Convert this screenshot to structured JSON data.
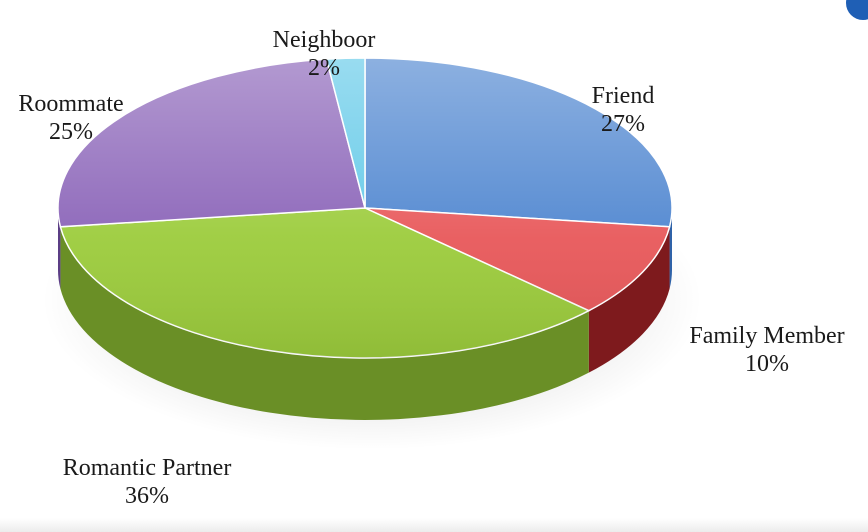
{
  "chart_data": {
    "type": "pie",
    "title": "",
    "categories": [
      "Friend",
      "Family Member",
      "Romantic Partner",
      "Roommate",
      "Neighboor"
    ],
    "values": [
      27,
      10,
      36,
      25,
      2
    ],
    "value_labels": [
      "27%",
      "10%",
      "36%",
      "25%",
      "2%"
    ],
    "colors": [
      "#4f86d0",
      "#e8585a",
      "#9ccc3c",
      "#8a63b8",
      "#62c9e8"
    ],
    "side_colors": [
      "#2f62a8",
      "#7e1a1d",
      "#6a8f26",
      "#5b3d85",
      "#3a98b8"
    ],
    "style": "3d-tilted",
    "legend": "none"
  }
}
